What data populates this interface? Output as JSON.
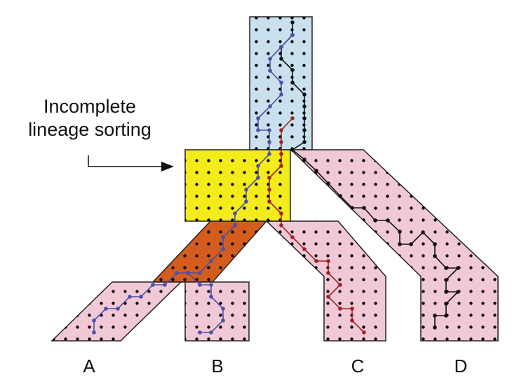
{
  "annotation": {
    "line1": "Incomplete",
    "line2": "lineage sorting"
  },
  "tips": [
    "A",
    "B",
    "C",
    "D"
  ],
  "colors": {
    "ancestral_top": "#c9e1ee",
    "ancestral_middle": "#f3ec1a",
    "ancestral_ab": "#d45d1d",
    "extant_species": "#f1c9d6",
    "lineage_blue": "#4d4fa6",
    "lineage_red": "#9e2223",
    "lineage_black": "#111111",
    "outline": "#222222"
  }
}
